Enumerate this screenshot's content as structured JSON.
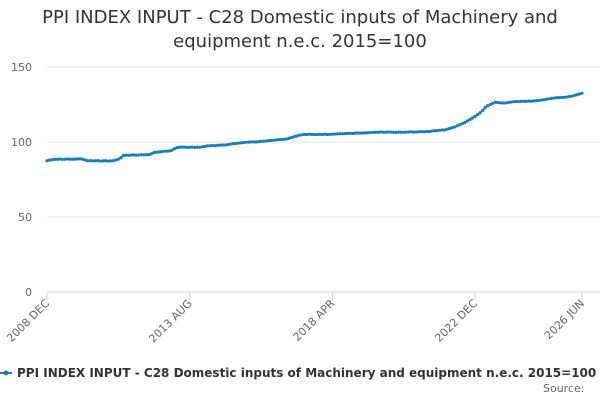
{
  "chart_data": {
    "type": "line",
    "title": "PPI INDEX INPUT - C28 Domestic inputs of Machinery and equipment n.e.c. 2015=100",
    "source": "Source:",
    "categories": [
      "2008 DEC",
      null,
      null,
      null,
      null,
      null,
      null,
      null,
      null,
      null,
      null,
      null,
      null,
      null,
      null,
      null,
      null,
      null,
      null,
      null,
      null,
      null,
      null,
      null,
      null,
      null,
      null,
      null,
      null,
      null,
      null,
      null,
      null,
      null,
      null,
      null,
      null,
      null,
      null,
      null,
      null,
      null,
      null,
      null,
      null,
      null,
      null,
      null,
      null,
      null,
      null,
      null,
      null,
      null,
      null,
      null,
      "2013 AUG",
      null,
      null,
      null,
      null,
      null,
      null,
      null,
      null,
      null,
      null,
      null,
      null,
      null,
      null,
      null,
      null,
      null,
      null,
      null,
      null,
      null,
      null,
      null,
      null,
      null,
      null,
      null,
      null,
      null,
      null,
      null,
      null,
      null,
      null,
      null,
      null,
      null,
      null,
      null,
      null,
      null,
      null,
      null,
      null,
      null,
      null,
      null,
      null,
      null,
      null,
      null,
      null,
      null,
      null,
      null,
      "2018 APR",
      null,
      null,
      null,
      null,
      null,
      null,
      null,
      null,
      null,
      null,
      null,
      null,
      null,
      null,
      null,
      null,
      null,
      null,
      null,
      null,
      null,
      null,
      null,
      null,
      null,
      null,
      null,
      null,
      null,
      null,
      null,
      null,
      null,
      null,
      null,
      null,
      null,
      null,
      null,
      null,
      null,
      null,
      null,
      null,
      null,
      null,
      null,
      null,
      null,
      null,
      null,
      null,
      null,
      null,
      null,
      "2022 DEC",
      null,
      null,
      null,
      null,
      null,
      null,
      null,
      null,
      null,
      null,
      null,
      null,
      null,
      null,
      null,
      null,
      null,
      null,
      null,
      null,
      null,
      null,
      null,
      null,
      null,
      null,
      null,
      null,
      null,
      null,
      null,
      null,
      null,
      null,
      null,
      null,
      null,
      null,
      null,
      null,
      null,
      "2026 JUN"
    ],
    "series": [
      {
        "name": "PPI INDEX INPUT - C28 Domestic inputs of Machinery and equipment n.e.c. 2015=100",
        "color": "#1a7db8",
        "values": [
          87.5,
          87.9,
          88.2,
          88.4,
          88.5,
          88.6,
          88.4,
          88.5,
          88.7,
          88.6,
          88.5,
          88.6,
          88.7,
          88.8,
          88.5,
          88,
          87.5,
          87.6,
          87.4,
          87.5,
          87.6,
          87.3,
          87.4,
          87.5,
          87.3,
          87.4,
          87.5,
          88,
          88.5,
          89.5,
          91,
          91.2,
          91.1,
          91.3,
          91.4,
          91.2,
          91.3,
          91.5,
          91.4,
          91.6,
          91.5,
          92.2,
          93,
          93.2,
          93.4,
          93.6,
          93.8,
          93.9,
          94,
          94.5,
          95.5,
          96.2,
          96.5,
          96.7,
          96.6,
          96.4,
          96.5,
          96.6,
          96.4,
          96.5,
          96.5,
          96.8,
          97.1,
          97.4,
          97.5,
          97.6,
          97.5,
          97.8,
          97.9,
          98,
          98,
          98.3,
          98.6,
          98.9,
          99,
          99.2,
          99.4,
          99.6,
          99.8,
          99.9,
          100,
          100.1,
          100,
          100.2,
          100.4,
          100.5,
          100.7,
          100.9,
          101,
          101.2,
          101.4,
          101.6,
          101.7,
          101.8,
          102,
          102.5,
          103,
          103.5,
          104,
          104.5,
          104.8,
          105,
          105,
          105.2,
          105.1,
          104.9,
          105,
          105.1,
          105,
          105.2,
          105,
          105.1,
          105.2,
          105.3,
          105.4,
          105.5,
          105.5,
          105.6,
          105.7,
          105.8,
          105.7,
          105.9,
          106,
          105.9,
          106,
          106.1,
          106.2,
          106.3,
          106.4,
          106.5,
          106.5,
          106.7,
          106.6,
          106.5,
          106.7,
          106.6,
          106.5,
          106.4,
          106.6,
          106.5,
          106.5,
          106.6,
          106.7,
          106.8,
          106.6,
          106.7,
          106.8,
          106.9,
          106.8,
          107,
          107,
          107.3,
          107.5,
          107.6,
          107.8,
          108,
          108,
          108.5,
          109,
          109.5,
          110,
          110.8,
          111.5,
          112.3,
          113,
          114,
          115,
          116,
          117,
          118.3,
          119.5,
          121,
          123,
          124.2,
          125,
          125.8,
          126.5,
          126.3,
          126.1,
          126,
          126,
          126.3,
          126.6,
          126.8,
          127,
          126.9,
          127.1,
          127.2,
          127.1,
          127.3,
          127.2,
          127.4,
          127.5,
          127.6,
          127.9,
          128.2,
          128.5,
          128.8,
          129,
          129.3,
          129.5,
          129.6,
          129.7,
          129.8,
          130,
          130.3,
          130.6,
          131,
          131.5,
          132,
          132.5
        ]
      }
    ],
    "ylim": [
      0,
      150
    ],
    "yticks": [
      0,
      50,
      100,
      150
    ],
    "grid": true,
    "legend": "bottom"
  }
}
